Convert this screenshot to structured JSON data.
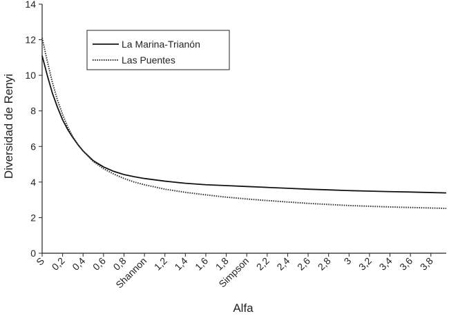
{
  "chart_data": {
    "type": "line",
    "title": "",
    "xlabel": "Alfa",
    "ylabel": "Diversidad de Renyi",
    "x_tick_labels": [
      "S",
      "0,2",
      "0,4",
      "0,6",
      "0,8",
      "Shannon",
      "1,2",
      "1,4",
      "1,6",
      "1,8",
      "Simpson",
      "2,2",
      "2,4",
      "2,6",
      "2,8",
      "3",
      "3,2",
      "3,4",
      "3,6",
      "3,8"
    ],
    "x_tick_values": [
      0,
      0.2,
      0.4,
      0.6,
      0.8,
      1.0,
      1.2,
      1.4,
      1.6,
      1.8,
      2.0,
      2.2,
      2.4,
      2.6,
      2.8,
      3.0,
      3.2,
      3.4,
      3.6,
      3.8
    ],
    "xlim": [
      0,
      3.95
    ],
    "ylim": [
      0,
      14
    ],
    "y_ticks": [
      0,
      2,
      4,
      6,
      8,
      10,
      12,
      14
    ],
    "grid": false,
    "legend_position": "top-left",
    "series": [
      {
        "name": "La Marina-Trianón",
        "style": "solid",
        "color": "#111111",
        "x": [
          0,
          0.05,
          0.1,
          0.15,
          0.2,
          0.25,
          0.3,
          0.35,
          0.4,
          0.5,
          0.6,
          0.7,
          0.8,
          0.9,
          1.0,
          1.2,
          1.4,
          1.6,
          1.8,
          2.0,
          2.2,
          2.4,
          2.6,
          2.8,
          3.0,
          3.2,
          3.4,
          3.6,
          3.8,
          3.95
        ],
        "y": [
          11.1,
          10.0,
          9.0,
          8.2,
          7.5,
          6.95,
          6.5,
          6.1,
          5.75,
          5.2,
          4.85,
          4.6,
          4.42,
          4.3,
          4.2,
          4.05,
          3.93,
          3.85,
          3.8,
          3.75,
          3.7,
          3.65,
          3.6,
          3.56,
          3.52,
          3.49,
          3.46,
          3.44,
          3.41,
          3.39
        ]
      },
      {
        "name": "Las Puentes",
        "style": "dotted",
        "color": "#333333",
        "x": [
          0,
          0.05,
          0.1,
          0.15,
          0.2,
          0.25,
          0.3,
          0.35,
          0.4,
          0.5,
          0.6,
          0.7,
          0.8,
          0.9,
          1.0,
          1.2,
          1.4,
          1.6,
          1.8,
          2.0,
          2.2,
          2.4,
          2.6,
          2.8,
          3.0,
          3.2,
          3.4,
          3.6,
          3.8,
          3.95
        ],
        "y": [
          12.1,
          10.8,
          9.6,
          8.6,
          7.8,
          7.1,
          6.55,
          6.1,
          5.75,
          5.15,
          4.75,
          4.45,
          4.2,
          4.0,
          3.85,
          3.6,
          3.42,
          3.28,
          3.15,
          3.05,
          2.96,
          2.88,
          2.8,
          2.74,
          2.68,
          2.64,
          2.6,
          2.57,
          2.54,
          2.52
        ]
      }
    ]
  }
}
